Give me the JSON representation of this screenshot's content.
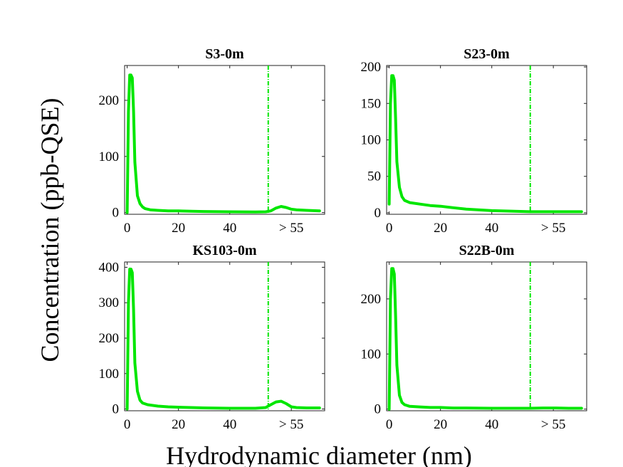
{
  "figure": {
    "ylabel": "Concentration (ppb-QSE)",
    "xlabel": "Hydrodynamic diameter (nm)",
    "series_color": "#00e600"
  },
  "chart_data": [
    {
      "type": "line",
      "title": "S3-0m",
      "xlim": [
        -1,
        77
      ],
      "ylim": [
        -3,
        262
      ],
      "x_ticks": [
        0,
        20,
        40,
        64
      ],
      "x_tick_labels": [
        "0",
        "20",
        "40",
        "> 55"
      ],
      "y_ticks": [
        0,
        100,
        200
      ],
      "y_tick_labels": [
        "0",
        "100",
        "200"
      ],
      "divider_x": 55,
      "x": [
        0,
        0.5,
        1,
        1.5,
        2,
        2.5,
        3,
        4,
        5,
        6,
        7,
        9,
        12,
        16,
        20,
        25,
        30,
        40,
        50,
        54,
        56,
        58,
        60,
        62,
        64,
        66,
        70,
        75
      ],
      "y": [
        0,
        180,
        245,
        245,
        240,
        180,
        90,
        30,
        16,
        10,
        7,
        5,
        4,
        3,
        3,
        2.5,
        2,
        1.5,
        1,
        1.5,
        3,
        8,
        11,
        9,
        6,
        5,
        4,
        3
      ]
    },
    {
      "type": "line",
      "title": "S23-0m",
      "xlim": [
        -1,
        77
      ],
      "ylim": [
        -2,
        202
      ],
      "x_ticks": [
        0,
        20,
        40,
        64
      ],
      "x_tick_labels": [
        "0",
        "20",
        "40",
        "> 55"
      ],
      "y_ticks": [
        0,
        50,
        100,
        150,
        200
      ],
      "y_tick_labels": [
        "0",
        "50",
        "100",
        "150",
        "200"
      ],
      "divider_x": 55,
      "x": [
        0,
        0.5,
        1,
        1.5,
        2,
        2.5,
        3,
        4,
        5,
        6,
        8,
        12,
        16,
        20,
        25,
        30,
        40,
        50,
        55,
        60,
        65,
        70,
        75
      ],
      "y": [
        12,
        150,
        188,
        188,
        182,
        130,
        70,
        35,
        22,
        17,
        14,
        12,
        10,
        9,
        7,
        5,
        3,
        2,
        1.5,
        1.5,
        1.5,
        1.5,
        1.5
      ]
    },
    {
      "type": "line",
      "title": "KS103-0m",
      "xlim": [
        -1,
        77
      ],
      "ylim": [
        -5,
        415
      ],
      "x_ticks": [
        0,
        20,
        40,
        64
      ],
      "x_tick_labels": [
        "0",
        "20",
        "40",
        "> 55"
      ],
      "y_ticks": [
        0,
        100,
        200,
        300,
        400
      ],
      "y_tick_labels": [
        "0",
        "100",
        "200",
        "300",
        "400"
      ],
      "divider_x": 55,
      "x": [
        0,
        0.5,
        1,
        1.5,
        2,
        2.5,
        3,
        4,
        5,
        6,
        8,
        12,
        16,
        20,
        25,
        30,
        40,
        50,
        54,
        56,
        58,
        60,
        62,
        64,
        66,
        70,
        75
      ],
      "y": [
        0,
        300,
        395,
        395,
        385,
        280,
        130,
        50,
        25,
        17,
        12,
        8,
        6,
        5,
        4,
        3,
        2,
        2,
        4,
        12,
        20,
        22,
        15,
        6,
        4,
        3,
        3
      ]
    },
    {
      "type": "line",
      "title": "S22B-0m",
      "xlim": [
        -1,
        77
      ],
      "ylim": [
        -3,
        267
      ],
      "x_ticks": [
        0,
        20,
        40,
        64
      ],
      "x_tick_labels": [
        "0",
        "20",
        "40",
        "> 55"
      ],
      "y_ticks": [
        0,
        100,
        200
      ],
      "y_tick_labels": [
        "0",
        "100",
        "200"
      ],
      "divider_x": 55,
      "x": [
        0,
        0.5,
        1,
        1.5,
        2,
        2.5,
        3,
        4,
        5,
        6,
        8,
        12,
        16,
        20,
        25,
        30,
        40,
        50,
        55,
        60,
        65,
        70,
        75
      ],
      "y": [
        0,
        200,
        255,
        255,
        245,
        170,
        80,
        25,
        12,
        8,
        5,
        4,
        3,
        3,
        2,
        2,
        1.5,
        1.5,
        1.5,
        2,
        2,
        1.5,
        1.5
      ]
    }
  ]
}
